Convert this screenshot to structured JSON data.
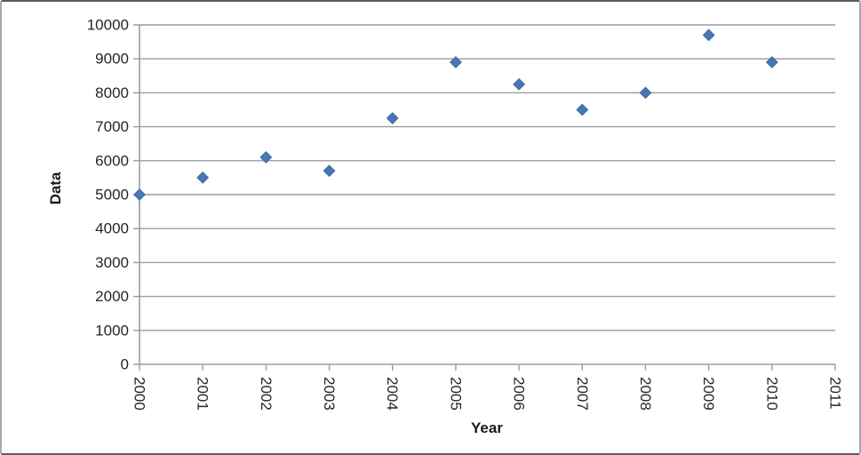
{
  "chart_data": {
    "type": "scatter",
    "title": "",
    "xlabel": "Year",
    "ylabel": "Data",
    "x_ticks": [
      "2000",
      "2001",
      "2002",
      "2003",
      "2004",
      "2005",
      "2006",
      "2007",
      "2008",
      "2009",
      "2010",
      "2011"
    ],
    "series": [
      {
        "name": "Data",
        "marker": "diamond",
        "x": [
          2000,
          2001,
          2002,
          2003,
          2004,
          2005,
          2006,
          2007,
          2008,
          2009,
          2010
        ],
        "values": [
          5000,
          5500,
          6100,
          5700,
          7250,
          8900,
          8250,
          7500,
          8000,
          9700,
          8900
        ]
      }
    ],
    "xlim": [
      2000,
      2011
    ],
    "ylim": [
      0,
      10000
    ],
    "y_tick_step": 1000,
    "grid": "horizontal",
    "legend": "none",
    "colors": {
      "marker_fill": "#4877b8",
      "marker_stroke": "#3a67a2",
      "gridline": "#9c9c9c",
      "axis": "#9c9c9c",
      "text": "#262626",
      "background": "#ffffff"
    }
  }
}
